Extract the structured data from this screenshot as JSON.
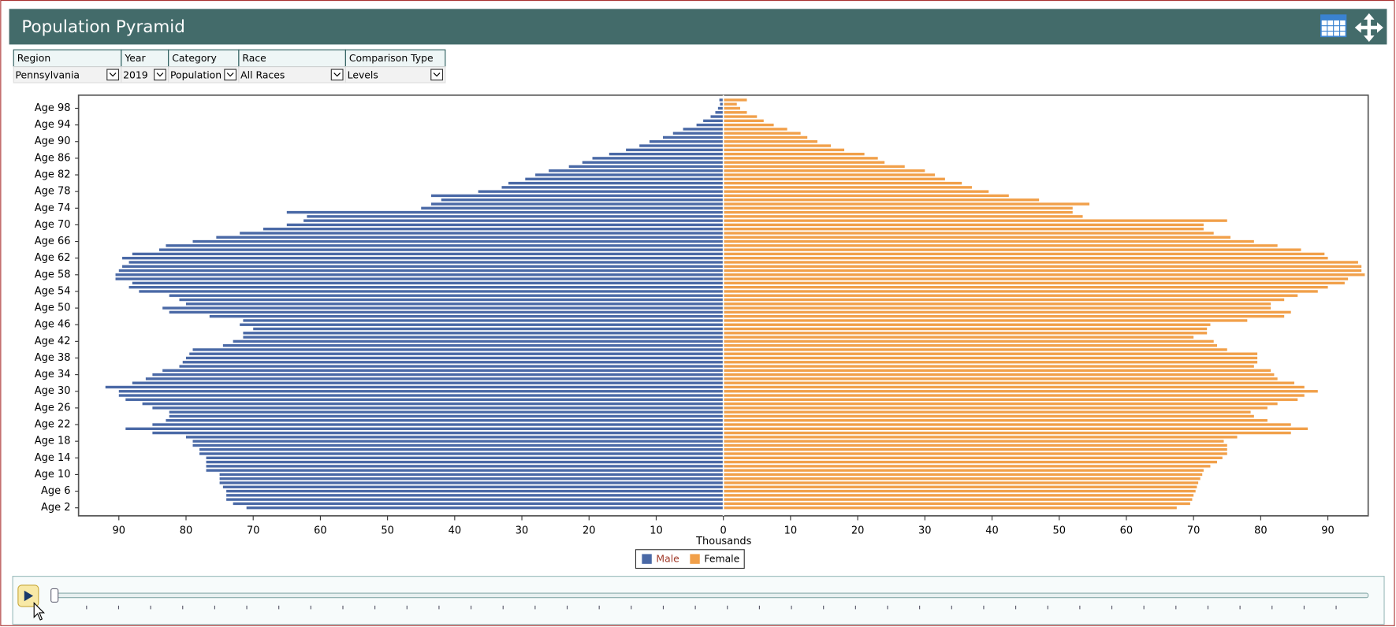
{
  "filters": [
    {
      "label": "Region",
      "value": "Pennsylvania"
    },
    {
      "label": "Year",
      "value": "2019"
    },
    {
      "label": "Category",
      "value": "Population"
    },
    {
      "label": "Race",
      "value": "All Races"
    },
    {
      "label": "Comparison Type",
      "value": "Levels"
    }
  ],
  "chart_data": {
    "type": "pyramid",
    "title": "Population Pyramid",
    "x_label": "Thousands",
    "categories": [
      "Age 2",
      null,
      null,
      null,
      "Age 6",
      null,
      null,
      null,
      "Age 10",
      null,
      null,
      null,
      "Age 14",
      null,
      null,
      null,
      "Age 18",
      null,
      null,
      null,
      "Age 22",
      null,
      null,
      null,
      "Age 26",
      null,
      null,
      null,
      "Age 30",
      null,
      null,
      null,
      "Age 34",
      null,
      null,
      null,
      "Age 38",
      null,
      null,
      null,
      "Age 42",
      null,
      null,
      null,
      "Age 46",
      null,
      null,
      null,
      "Age 50",
      null,
      null,
      null,
      "Age 54",
      null,
      null,
      null,
      "Age 58",
      null,
      null,
      null,
      "Age 62",
      null,
      null,
      null,
      "Age 66",
      null,
      null,
      null,
      "Age 70",
      null,
      null,
      null,
      "Age 74",
      null,
      null,
      null,
      "Age 78",
      null,
      null,
      null,
      "Age 82",
      null,
      null,
      null,
      "Age 86",
      null,
      null,
      null,
      "Age 90",
      null,
      null,
      null,
      "Age 94",
      null,
      null,
      null,
      "Age 98",
      null,
      null
    ],
    "series": [
      {
        "name": "Male",
        "color": "#4a69a6",
        "values": [
          71,
          73,
          74,
          74,
          74,
          74.5,
          75,
          75,
          75,
          77,
          77,
          77,
          77,
          78,
          78,
          79,
          79,
          80,
          85,
          89,
          85,
          83,
          82.5,
          82.5,
          85,
          86.5,
          89,
          90,
          90,
          92,
          88,
          86,
          85,
          83.5,
          81,
          80.5,
          80,
          79.5,
          79,
          74.5,
          73,
          71.5,
          71.5,
          70,
          72,
          71.5,
          76.5,
          82.5,
          83.5,
          80,
          81,
          82.5,
          87,
          88.5,
          88,
          90.5,
          90.5,
          90,
          89.5,
          88.5,
          89.5,
          88,
          84,
          83,
          79,
          75.5,
          72,
          68.5,
          65,
          62.5,
          62,
          65,
          45,
          43.5,
          42,
          43.5,
          36.5,
          33,
          32,
          29.5,
          28,
          26,
          23,
          21,
          19.5,
          17,
          14.5,
          12.5,
          11,
          9,
          7.5,
          6,
          4,
          3,
          1.9,
          1.2,
          0.8,
          0.5,
          0.6
        ]
      },
      {
        "name": "Female",
        "color": "#f1a04a",
        "values": [
          67.5,
          69.5,
          69.8,
          70,
          70.3,
          70.5,
          70.7,
          71,
          71.3,
          71.5,
          72.5,
          73.5,
          74.3,
          75,
          75,
          75,
          74.5,
          76.5,
          84.5,
          87,
          84.5,
          81,
          79,
          78.5,
          81,
          82.5,
          85.5,
          86.5,
          88.5,
          86.5,
          85,
          82.5,
          82,
          81.5,
          79,
          79.5,
          79.5,
          79.5,
          75,
          73.5,
          73,
          70,
          72,
          72,
          72.5,
          78,
          83.5,
          84.5,
          81.5,
          81.5,
          83.5,
          85.5,
          88.5,
          90,
          92.5,
          93,
          95.5,
          95,
          95,
          94.5,
          90,
          89.5,
          86,
          82.5,
          79,
          75.5,
          73,
          71.5,
          71.5,
          75,
          53.5,
          52,
          52,
          54.5,
          47,
          42.5,
          39.5,
          37,
          35.5,
          33,
          31.5,
          30,
          27,
          24,
          23,
          21,
          18,
          16,
          14,
          12.5,
          11.5,
          9.5,
          7.5,
          6,
          5,
          3.5,
          2.5,
          2,
          3.5
        ]
      }
    ],
    "xlim": [
      -96,
      96
    ],
    "xticks": [
      {
        "value": -90,
        "label": "90"
      },
      {
        "value": -80,
        "label": "80"
      },
      {
        "value": -70,
        "label": "70"
      },
      {
        "value": -60,
        "label": "60"
      },
      {
        "value": -50,
        "label": "50"
      },
      {
        "value": -40,
        "label": "40"
      },
      {
        "value": -30,
        "label": "30"
      },
      {
        "value": -20,
        "label": "20"
      },
      {
        "value": -10,
        "label": "10"
      },
      0,
      10,
      20,
      30,
      40,
      50,
      60,
      70,
      80,
      90
    ],
    "legend": "bottom"
  }
}
